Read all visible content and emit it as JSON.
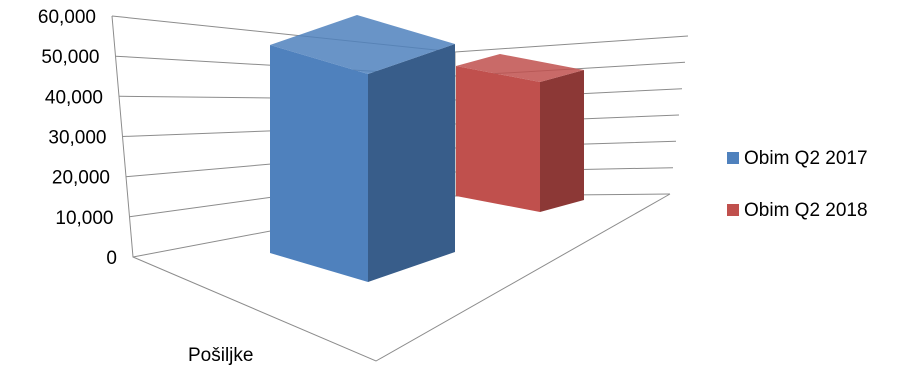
{
  "chart_data": {
    "type": "bar",
    "title": "",
    "xlabel": "",
    "ylabel": "",
    "categories": [
      "Pošiljke"
    ],
    "series": [
      {
        "name": "Obim Q2 2017",
        "values": [
          55000
        ],
        "color": "#4F81BD",
        "side_color": "#385D8A"
      },
      {
        "name": "Obim Q2 2018",
        "values": [
          38000
        ],
        "color": "#C0504D",
        "side_color": "#8C3836"
      }
    ],
    "ylim": [
      0,
      60000
    ],
    "yticks": [
      "0",
      "10,000",
      "20,000",
      "30,000",
      "40,000",
      "50,000",
      "60,000"
    ],
    "grid": true,
    "legend_position": "right",
    "style": "3d-perspective"
  }
}
